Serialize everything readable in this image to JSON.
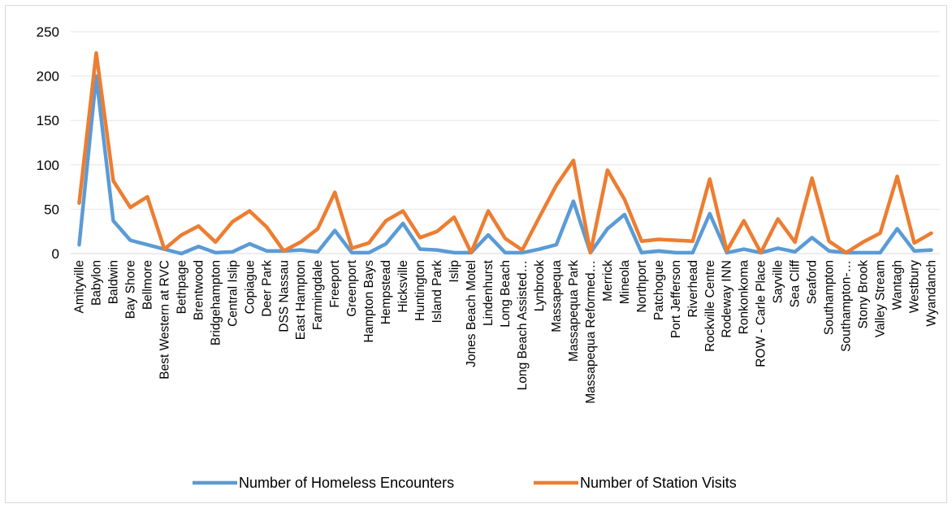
{
  "chart_data": {
    "type": "line",
    "title": "",
    "xlabel": "",
    "ylabel": "",
    "ylim": [
      0,
      250
    ],
    "yticks": [
      0,
      50,
      100,
      150,
      200,
      250
    ],
    "grid": true,
    "legend_position": "bottom",
    "categories": [
      "Amityville",
      "Babylon",
      "Baldwin",
      "Bay Shore",
      "Bellmore",
      "Best Western at RVC",
      "Bethpage",
      "Brentwood",
      "Bridgehampton",
      "Central Islip",
      "Copiague",
      "Deer Park",
      "DSS Nassau",
      "East Hampton",
      "Farmingdale",
      "Freeport",
      "Greenport",
      "Hampton Bays",
      "Hempstead",
      "Hicksville",
      "Huntington",
      "Island Park",
      "Islip",
      "Jones Beach Motel",
      "Lindenhurst",
      "Long Beach",
      "Long Beach Assisted…",
      "Lynbrook",
      "Massapequa",
      "Massapequa Park",
      "Massapequa Reformed…",
      "Merrick",
      "Mineola",
      "Northport",
      "Patchogue",
      "Port Jefferson",
      "Riverhead",
      "Rockville Centre",
      "Rodeway INN",
      "Ronkonkoma",
      "ROW - Carle Place",
      "Sayville",
      "Sea Cliff",
      "Seaford",
      "Southampton",
      "Southampton-…",
      "Stony Brook",
      "Valley Stream",
      "Wantagh",
      "Westbury",
      "Wyandanch"
    ],
    "series": [
      {
        "name": "Number of Homeless Encounters",
        "color": "#5b9bd5",
        "values": [
          10,
          200,
          37,
          15,
          10,
          5,
          0,
          8,
          1,
          2,
          11,
          3,
          3,
          4,
          2,
          26,
          1,
          1,
          11,
          34,
          5,
          4,
          1,
          1,
          21,
          1,
          1,
          5,
          10,
          59,
          1,
          28,
          44,
          1,
          3,
          1,
          1,
          45,
          1,
          5,
          1,
          6,
          2,
          18,
          3,
          1,
          1,
          1,
          28,
          3,
          4
        ]
      },
      {
        "name": "Number of Station Visits",
        "color": "#ed7d31",
        "values": [
          57,
          226,
          82,
          52,
          64,
          5,
          21,
          31,
          13,
          36,
          48,
          30,
          3,
          13,
          28,
          69,
          6,
          12,
          37,
          48,
          18,
          25,
          41,
          1,
          48,
          17,
          4,
          41,
          77,
          105,
          1,
          94,
          61,
          14,
          16,
          15,
          14,
          84,
          3,
          37,
          1,
          39,
          13,
          85,
          14,
          1,
          13,
          23,
          87,
          12,
          23
        ]
      }
    ]
  }
}
